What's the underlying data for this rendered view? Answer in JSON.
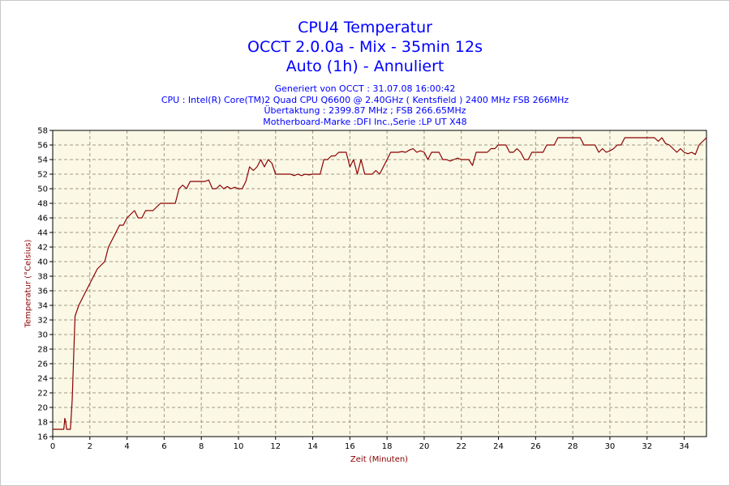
{
  "chart_data": {
    "type": "line",
    "title": [
      "CPU4 Temperatur",
      "OCCT 2.0.0a - Mix - 35min 12s",
      "Auto (1h) - Annuliert"
    ],
    "subtitle": [
      "Generiert von OCCT : 31.07.08 16:00:42",
      "CPU : Intel(R) Core(TM)2 Quad CPU Q6600 @ 2.40GHz ( Kentsfield ) 2400 MHz FSB 266MHz",
      "Übertaktung : 2399.87 MHz ; FSB 266.65MHz",
      "Motherboard-Marke :DFI Inc.,Serie :LP UT X48"
    ],
    "xlabel": "Zeit (Minuten)",
    "ylabel": "Temperatur (°Celsius)",
    "xlim": [
      0,
      35.2
    ],
    "ylim": [
      16,
      58
    ],
    "xticks": [
      0,
      2,
      4,
      6,
      8,
      10,
      12,
      14,
      16,
      18,
      20,
      22,
      24,
      26,
      28,
      30,
      32,
      34
    ],
    "yticks": [
      16,
      18,
      20,
      22,
      24,
      26,
      28,
      30,
      32,
      34,
      36,
      38,
      40,
      42,
      44,
      46,
      48,
      50,
      52,
      54,
      56,
      58
    ],
    "grid": true,
    "line_color": "#8b0000",
    "plot_background": "#fbf8e6",
    "grid_color": "#a09a80",
    "text_color": "#0000ff",
    "axis_title_color": "#8b0000",
    "series": [
      {
        "x": [
          0,
          0.6,
          0.65,
          0.7,
          0.75,
          0.8,
          0.95,
          1.05,
          1.2,
          1.4,
          1.6,
          1.8,
          2.0,
          2.2,
          2.4,
          2.6,
          2.8,
          3.0,
          3.2,
          3.4,
          3.6,
          3.8,
          4.0,
          4.2,
          4.4,
          4.6,
          4.8,
          5.0,
          5.2,
          5.4,
          5.6,
          5.8,
          6.0,
          6.2,
          6.4,
          6.6,
          6.8,
          7.0,
          7.2,
          7.4,
          7.6,
          7.8,
          8.0,
          8.2,
          8.4,
          8.6,
          8.8,
          9.0,
          9.2,
          9.4,
          9.6,
          9.8,
          10.0,
          10.2,
          10.4,
          10.6,
          10.8,
          11.0,
          11.2,
          11.4,
          11.6,
          11.8,
          12.0,
          12.2,
          12.4,
          12.6,
          12.8,
          13.0,
          13.2,
          13.4,
          13.6,
          13.8,
          14.0,
          14.2,
          14.4,
          14.6,
          14.8,
          15.0,
          15.2,
          15.4,
          15.6,
          15.8,
          16.0,
          16.2,
          16.4,
          16.6,
          16.8,
          17.0,
          17.2,
          17.4,
          17.6,
          17.8,
          18.0,
          18.2,
          18.4,
          18.6,
          18.8,
          19.0,
          19.2,
          19.4,
          19.6,
          19.8,
          20.0,
          20.2,
          20.4,
          20.6,
          20.8,
          21.0,
          21.2,
          21.4,
          21.6,
          21.8,
          22.0,
          22.2,
          22.4,
          22.6,
          22.8,
          23.0,
          23.2,
          23.4,
          23.6,
          23.8,
          24.0,
          24.2,
          24.4,
          24.6,
          24.8,
          25.0,
          25.2,
          25.4,
          25.6,
          25.8,
          26.0,
          26.2,
          26.4,
          26.6,
          26.8,
          27.0,
          27.2,
          27.4,
          27.6,
          27.8,
          28.0,
          28.2,
          28.4,
          28.6,
          28.8,
          29.0,
          29.2,
          29.4,
          29.6,
          29.8,
          30.0,
          30.2,
          30.4,
          30.6,
          30.8,
          31.0,
          31.2,
          31.4,
          31.6,
          31.8,
          32.0,
          32.2,
          32.4,
          32.6,
          32.8,
          33.0,
          33.2,
          33.4,
          33.6,
          33.8,
          34.0,
          34.2,
          34.4,
          34.6,
          34.8,
          35.0,
          35.2
        ],
        "y": [
          17,
          17,
          18.5,
          18,
          17,
          17,
          17,
          21,
          32.5,
          34,
          35,
          36,
          37,
          38,
          39,
          39.5,
          40,
          42,
          43,
          44,
          45,
          45,
          46,
          46.5,
          47,
          46,
          46,
          47,
          47,
          47,
          47.5,
          48,
          48,
          48,
          48,
          48,
          50,
          50.5,
          50,
          51,
          51,
          51,
          51,
          51,
          51.2,
          50,
          50,
          50.5,
          50,
          50.3,
          50,
          50.2,
          50,
          50,
          51,
          53,
          52.5,
          53,
          54,
          53,
          54,
          53.5,
          52,
          52,
          52,
          52,
          52,
          51.8,
          52,
          51.8,
          52,
          51.9,
          52,
          52,
          52,
          54,
          54,
          54.5,
          54.5,
          55,
          55,
          55,
          53,
          54,
          52,
          54,
          52,
          52,
          52,
          52.5,
          52,
          53,
          54,
          55,
          55,
          55,
          55.1,
          55,
          55.3,
          55.5,
          55,
          55.2,
          55,
          54,
          55,
          55,
          55,
          54,
          54,
          53.8,
          54,
          54.2,
          54,
          54,
          54,
          53.2,
          55,
          55,
          55,
          55,
          55.5,
          55.5,
          56,
          56,
          56,
          55,
          55,
          55.5,
          55,
          54,
          54,
          55,
          55,
          55,
          55,
          56,
          56,
          56,
          57,
          57,
          57,
          57,
          57,
          57,
          57,
          56,
          56,
          56,
          56,
          55,
          55.5,
          55,
          55.2,
          55.5,
          56,
          56,
          57,
          57,
          57,
          57,
          57,
          57,
          57,
          57,
          57,
          56.5,
          57,
          56.2,
          56,
          55.5,
          55,
          55.5,
          55,
          54.8,
          55,
          54.7,
          56,
          56.5,
          57
        ]
      }
    ]
  }
}
